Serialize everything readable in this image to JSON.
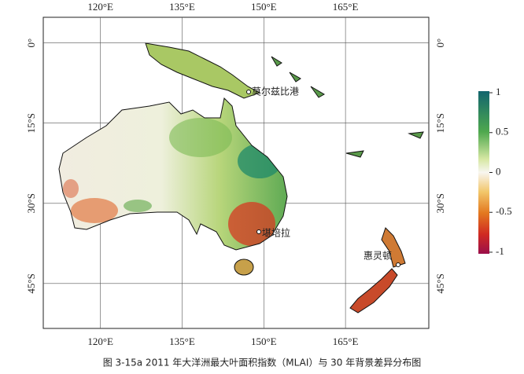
{
  "map": {
    "lonlim": [
      109.5,
      180.3
    ],
    "latlim": [
      4.8,
      -53.4
    ],
    "lon_ticks": [
      {
        "value": 120,
        "label": "120°E"
      },
      {
        "value": 135,
        "label": "135°E"
      },
      {
        "value": 150,
        "label": "150°E"
      },
      {
        "value": 165,
        "label": "165°E"
      }
    ],
    "lat_ticks": [
      {
        "value": 0,
        "label": "0°"
      },
      {
        "value": -15,
        "label": "15°S"
      },
      {
        "value": -30,
        "label": "30°S"
      },
      {
        "value": -45,
        "label": "45°S"
      }
    ],
    "cities": [
      {
        "label": "莫尔兹比港"
      },
      {
        "label": "堪培拉"
      },
      {
        "label": "惠灵顿"
      }
    ]
  },
  "colorbar": {
    "lim": [
      -1.02,
      1.02
    ],
    "ticks": [
      1,
      0.5,
      0,
      -0.5,
      -1
    ]
  },
  "caption": "图 3-15a 2011 年大洋洲最大叶面积指数（MLAI）与 30 年背景差异分布图"
}
